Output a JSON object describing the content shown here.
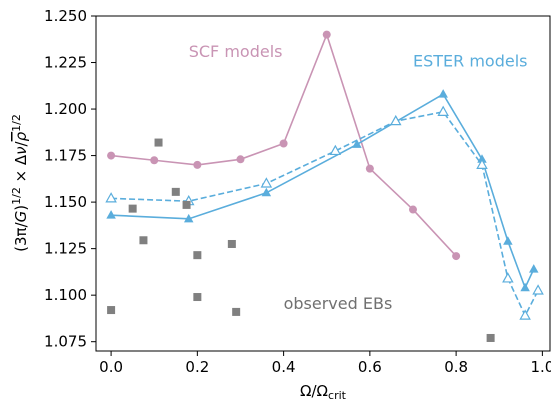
{
  "chart_data": {
    "type": "line",
    "xlabel": "Ω/Ω",
    "xlabel_sub": "crit",
    "ylabel": "(3π/G)^{1/2} × Δν/ρ̄^{1/2}",
    "xlim": [
      -0.035,
      1.02
    ],
    "ylim": [
      1.07,
      1.25
    ],
    "xticks": [
      0.0,
      0.2,
      0.4,
      0.6,
      0.8,
      1.0
    ],
    "xtick_labels": [
      "0.0",
      "0.2",
      "0.4",
      "0.6",
      "0.8",
      "1.0"
    ],
    "yticks": [
      1.075,
      1.1,
      1.125,
      1.15,
      1.175,
      1.2,
      1.225,
      1.25
    ],
    "ytick_labels": [
      "1.075",
      "1.100",
      "1.125",
      "1.150",
      "1.175",
      "1.200",
      "1.225",
      "1.250"
    ],
    "grid": false,
    "annotations": [
      {
        "text": "SCF models",
        "color": "#c994b4",
        "x": 0.18,
        "y": 1.228
      },
      {
        "text": "ESTER models",
        "color": "#5aaddc",
        "x": 0.7,
        "y": 1.223
      },
      {
        "text": "observed EBs",
        "color": "#707070",
        "x": 0.4,
        "y": 1.0925
      }
    ],
    "series": [
      {
        "role": "scf",
        "color": "#c994b4",
        "marker": "circle",
        "line": "solid",
        "x": [
          0.0,
          0.1,
          0.2,
          0.3,
          0.4,
          0.5,
          0.6,
          0.7,
          0.8
        ],
        "y": [
          1.175,
          1.1725,
          1.17,
          1.173,
          1.1815,
          1.24,
          1.168,
          1.146,
          1.121
        ]
      },
      {
        "role": "ester-solid",
        "color": "#5aaddc",
        "marker": "triangle-filled",
        "line": "solid",
        "x": [
          0.0,
          0.18,
          0.36,
          0.57,
          0.77,
          0.86,
          0.92,
          0.96,
          0.98
        ],
        "y": [
          1.143,
          1.141,
          1.155,
          1.181,
          1.208,
          1.173,
          1.129,
          1.104,
          1.114
        ]
      },
      {
        "role": "ester-dashed",
        "color": "#5aaddc",
        "marker": "triangle-open",
        "line": "dashed",
        "x": [
          0.0,
          0.18,
          0.36,
          0.52,
          0.66,
          0.77,
          0.86,
          0.92,
          0.96,
          0.99
        ],
        "y": [
          1.152,
          1.1505,
          1.16,
          1.1775,
          1.1935,
          1.1985,
          1.17,
          1.109,
          1.089,
          1.1025
        ]
      },
      {
        "role": "observed",
        "color": "#808080",
        "marker": "square",
        "line": "none",
        "x": [
          0.0,
          0.05,
          0.075,
          0.11,
          0.15,
          0.175,
          0.2,
          0.2,
          0.28,
          0.29,
          0.88
        ],
        "y": [
          1.092,
          1.1465,
          1.1295,
          1.182,
          1.1555,
          1.1485,
          1.1215,
          1.099,
          1.1275,
          1.091,
          1.077
        ]
      }
    ]
  }
}
